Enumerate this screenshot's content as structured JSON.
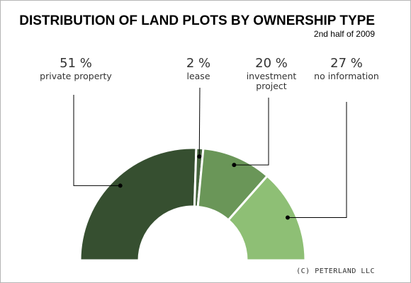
{
  "chart_data": {
    "type": "pie",
    "title": "DISTRIBUTION OF LAND PLOTS BY OWNERSHIP TYPE",
    "subtitle": "2nd half of 2009",
    "slices": [
      {
        "label": "private property",
        "value": 51,
        "value_label": "51 %",
        "color": "#364f30"
      },
      {
        "label": "lease",
        "value": 2,
        "value_label": "2 %",
        "color": "#46653d"
      },
      {
        "label": "investment project",
        "value": 20,
        "value_label": "20 %",
        "color": "#6a9658"
      },
      {
        "label": "no information",
        "value": 27,
        "value_label": "27 %",
        "color": "#8ebf75"
      }
    ],
    "footer": "(C) PETERLAND LLC"
  }
}
